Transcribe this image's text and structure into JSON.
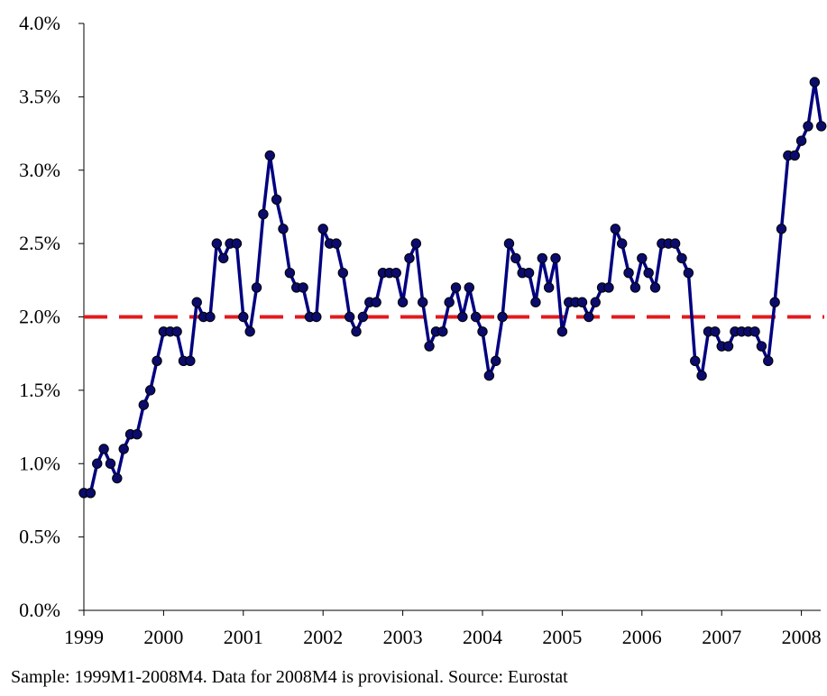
{
  "chart_data": {
    "type": "line",
    "title": "",
    "xlabel": "",
    "ylabel": "",
    "ylim": [
      0,
      0.04
    ],
    "xlim": [
      "1999-01",
      "2008-04"
    ],
    "y_tick_labels": [
      "0.0%",
      "0.5%",
      "1.0%",
      "1.5%",
      "2.0%",
      "2.5%",
      "3.0%",
      "3.5%",
      "4.0%"
    ],
    "x_tick_labels": [
      "1999",
      "2000",
      "2001",
      "2002",
      "2003",
      "2004",
      "2005",
      "2006",
      "2007",
      "2008"
    ],
    "grid": false,
    "legend": "none",
    "reference_line": {
      "value": 0.02,
      "style": "dashed",
      "color": "#e31a1c"
    },
    "series": [
      {
        "color": "#000080",
        "marker_color": "#0b0b6e",
        "x": [
          "1999-01",
          "1999-02",
          "1999-03",
          "1999-04",
          "1999-05",
          "1999-06",
          "1999-07",
          "1999-08",
          "1999-09",
          "1999-10",
          "1999-11",
          "1999-12",
          "2000-01",
          "2000-02",
          "2000-03",
          "2000-04",
          "2000-05",
          "2000-06",
          "2000-07",
          "2000-08",
          "2000-09",
          "2000-10",
          "2000-11",
          "2000-12",
          "2001-01",
          "2001-02",
          "2001-03",
          "2001-04",
          "2001-05",
          "2001-06",
          "2001-07",
          "2001-08",
          "2001-09",
          "2001-10",
          "2001-11",
          "2001-12",
          "2002-01",
          "2002-02",
          "2002-03",
          "2002-04",
          "2002-05",
          "2002-06",
          "2002-07",
          "2002-08",
          "2002-09",
          "2002-10",
          "2002-11",
          "2002-12",
          "2003-01",
          "2003-02",
          "2003-03",
          "2003-04",
          "2003-05",
          "2003-06",
          "2003-07",
          "2003-08",
          "2003-09",
          "2003-10",
          "2003-11",
          "2003-12",
          "2004-01",
          "2004-02",
          "2004-03",
          "2004-04",
          "2004-05",
          "2004-06",
          "2004-07",
          "2004-08",
          "2004-09",
          "2004-10",
          "2004-11",
          "2004-12",
          "2005-01",
          "2005-02",
          "2005-03",
          "2005-04",
          "2005-05",
          "2005-06",
          "2005-07",
          "2005-08",
          "2005-09",
          "2005-10",
          "2005-11",
          "2005-12",
          "2006-01",
          "2006-02",
          "2006-03",
          "2006-04",
          "2006-05",
          "2006-06",
          "2006-07",
          "2006-08",
          "2006-09",
          "2006-10",
          "2006-11",
          "2006-12",
          "2007-01",
          "2007-02",
          "2007-03",
          "2007-04",
          "2007-05",
          "2007-06",
          "2007-07",
          "2007-08",
          "2007-09",
          "2007-10",
          "2007-11",
          "2007-12",
          "2008-01",
          "2008-02",
          "2008-03",
          "2008-04"
        ],
        "values": [
          0.008,
          0.008,
          0.01,
          0.011,
          0.01,
          0.009,
          0.011,
          0.012,
          0.012,
          0.014,
          0.015,
          0.017,
          0.019,
          0.019,
          0.019,
          0.017,
          0.017,
          0.021,
          0.02,
          0.02,
          0.025,
          0.024,
          0.025,
          0.025,
          0.02,
          0.019,
          0.022,
          0.027,
          0.031,
          0.028,
          0.026,
          0.023,
          0.022,
          0.022,
          0.02,
          0.02,
          0.026,
          0.025,
          0.025,
          0.023,
          0.02,
          0.019,
          0.02,
          0.021,
          0.021,
          0.023,
          0.023,
          0.023,
          0.021,
          0.024,
          0.025,
          0.021,
          0.018,
          0.019,
          0.019,
          0.021,
          0.022,
          0.02,
          0.022,
          0.02,
          0.019,
          0.016,
          0.017,
          0.02,
          0.025,
          0.024,
          0.023,
          0.023,
          0.021,
          0.024,
          0.022,
          0.024,
          0.019,
          0.021,
          0.021,
          0.021,
          0.02,
          0.021,
          0.022,
          0.022,
          0.026,
          0.025,
          0.023,
          0.022,
          0.024,
          0.023,
          0.022,
          0.025,
          0.025,
          0.025,
          0.024,
          0.023,
          0.017,
          0.016,
          0.019,
          0.019,
          0.018,
          0.018,
          0.019,
          0.019,
          0.019,
          0.019,
          0.018,
          0.017,
          0.021,
          0.026,
          0.031,
          0.031,
          0.032,
          0.033,
          0.036,
          0.033
        ]
      }
    ]
  },
  "footnote": "Sample: 1999M1-2008M4. Data for 2008M4 is provisional. Source: Eurostat"
}
